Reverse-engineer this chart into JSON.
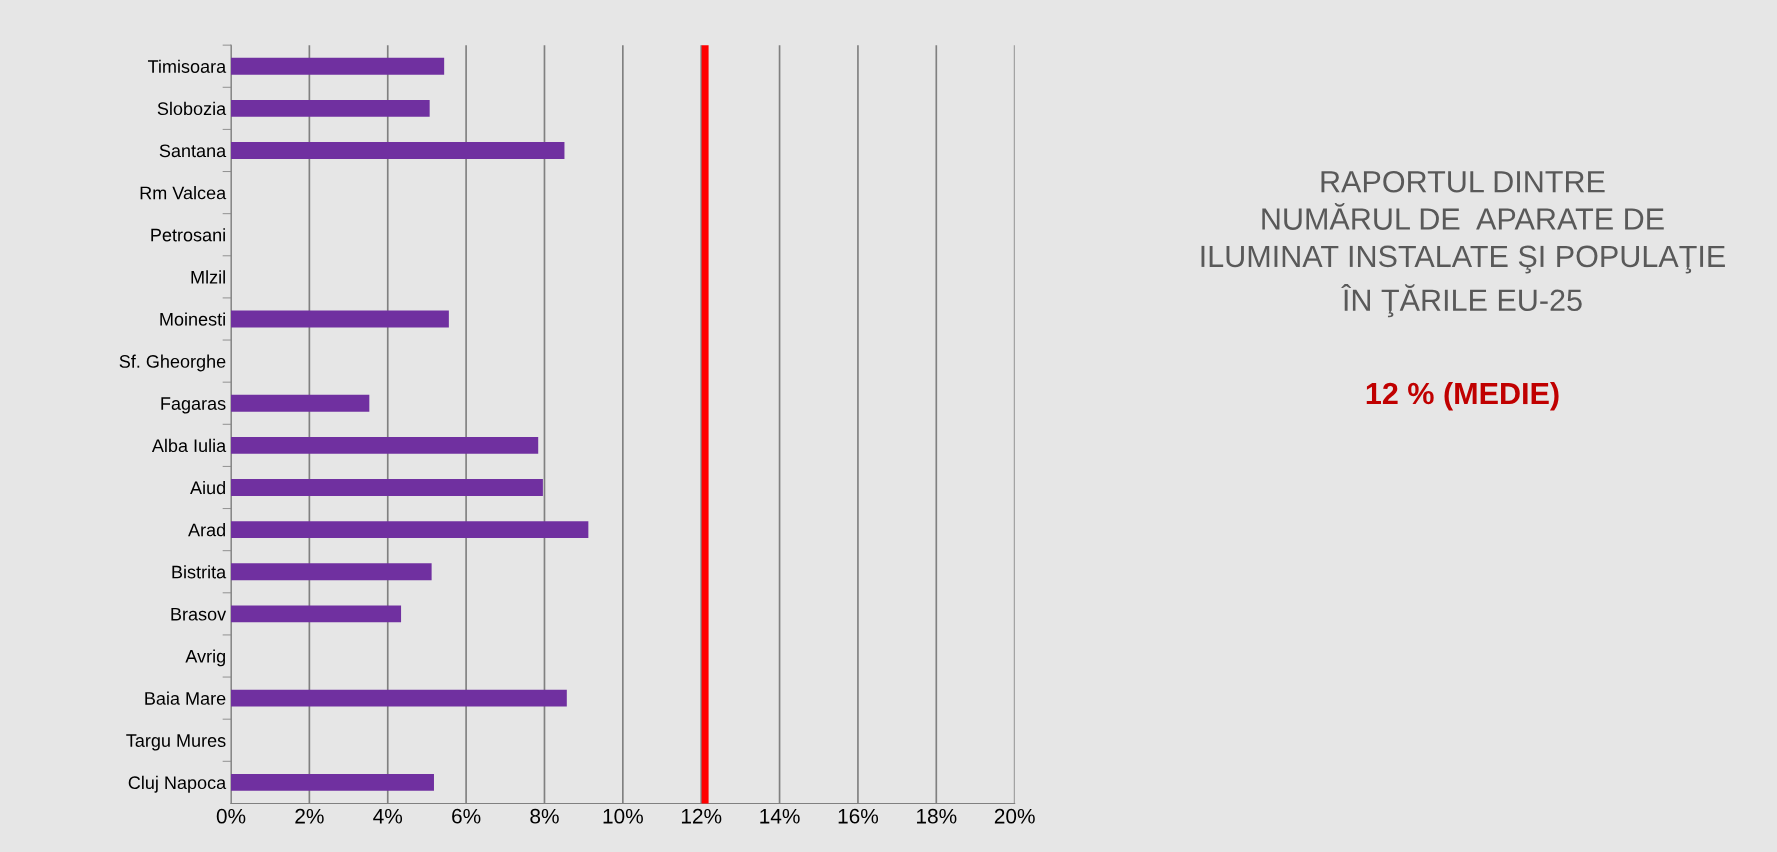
{
  "chart_data": {
    "type": "bar",
    "orientation": "horizontal",
    "title": "RAPORTUL DINTRE\nNUMĂRUL DE  APARATE DE\nILUMINAT INSTALATE ŞI POPULAŢIE\nÎN ŢĂRILE EU-25",
    "annotations": [
      "12 % (MEDIE)"
    ],
    "categories": [
      "Timisoara",
      "Slobozia",
      "Santana",
      "Rm Valcea",
      "Petrosani",
      "Mlzil",
      "Moinesti",
      "Sf. Gheorghe",
      "Fagaras",
      "Alba Iulia",
      "Aiud",
      "Arad",
      "Bistrita",
      "Brasov",
      "Avrig",
      "Baia Mare",
      "Targu Mures",
      "Cluj Napoca"
    ],
    "values": [
      5.44,
      5.07,
      8.51,
      null,
      null,
      null,
      5.56,
      null,
      3.53,
      7.84,
      7.96,
      9.12,
      5.12,
      4.34,
      null,
      8.57,
      null,
      5.18
    ],
    "color": "#7030a0",
    "xlim": [
      0,
      20
    ],
    "xticks": [
      {
        "value": 0,
        "label": "0%"
      },
      {
        "value": 2,
        "label": "2%"
      },
      {
        "value": 4,
        "label": "4%"
      },
      {
        "value": 6,
        "label": "6%"
      },
      {
        "value": 8,
        "label": "8%"
      },
      {
        "value": 10,
        "label": "10%"
      },
      {
        "value": 12,
        "label": "12%"
      },
      {
        "value": 14,
        "label": "14%"
      },
      {
        "value": 16,
        "label": "16%"
      },
      {
        "value": 18,
        "label": "18%"
      },
      {
        "value": 20,
        "label": "20%"
      }
    ],
    "grid": "x",
    "ref_lines": [
      {
        "axis": "x",
        "value": 12.1,
        "color": "#ff0000"
      }
    ]
  }
}
